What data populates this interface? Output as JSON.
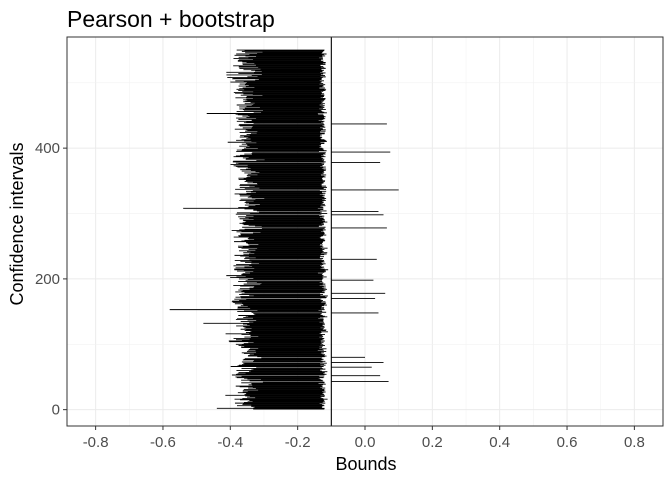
{
  "chart_data": {
    "type": "interval",
    "title": "Pearson + bootstrap",
    "xlabel": "Bounds",
    "ylabel": "Confidence intervals",
    "xlim": [
      -0.885,
      0.885
    ],
    "ylim": [
      -25,
      570
    ],
    "x_ticks": [
      -0.8,
      -0.6,
      -0.4,
      -0.2,
      0.0,
      0.2,
      0.4,
      0.6,
      0.8
    ],
    "x_tick_labels": [
      "-0.8",
      "-0.6",
      "-0.4",
      "-0.2",
      "0.0",
      "0.2",
      "0.4",
      "0.6",
      "0.8"
    ],
    "y_ticks": [
      0,
      200,
      400
    ],
    "y_tick_labels": [
      "0",
      "200",
      "400"
    ],
    "n_intervals": 550,
    "reference_line_x": -0.1,
    "interval_center_mean": -0.2,
    "lower_bound_typical_range": [
      -0.44,
      -0.28
    ],
    "upper_bound_typical_range": [
      -0.14,
      -0.1
    ],
    "highlighted_intervals": [
      {
        "y": 43,
        "lower": -0.1,
        "upper": 0.07
      },
      {
        "y": 52,
        "lower": -0.1,
        "upper": 0.045
      },
      {
        "y": 65,
        "lower": -0.1,
        "upper": 0.02
      },
      {
        "y": 72,
        "lower": -0.1,
        "upper": 0.055
      },
      {
        "y": 80,
        "lower": -0.1,
        "upper": 0.0
      },
      {
        "y": 148,
        "lower": -0.1,
        "upper": 0.04
      },
      {
        "y": 170,
        "lower": -0.1,
        "upper": 0.03
      },
      {
        "y": 178,
        "lower": -0.1,
        "upper": 0.06
      },
      {
        "y": 198,
        "lower": -0.1,
        "upper": 0.025
      },
      {
        "y": 230,
        "lower": -0.1,
        "upper": 0.035
      },
      {
        "y": 278,
        "lower": -0.1,
        "upper": 0.065
      },
      {
        "y": 298,
        "lower": -0.1,
        "upper": 0.055
      },
      {
        "y": 303,
        "lower": -0.1,
        "upper": 0.04
      },
      {
        "y": 336,
        "lower": -0.1,
        "upper": 0.1
      },
      {
        "y": 378,
        "lower": -0.1,
        "upper": 0.045
      },
      {
        "y": 394,
        "lower": -0.1,
        "upper": 0.075
      },
      {
        "y": 437,
        "lower": -0.1,
        "upper": 0.065
      }
    ],
    "wide_intervals": [
      {
        "y": 153,
        "lower": -0.58,
        "upper": -0.12
      },
      {
        "y": 132,
        "lower": -0.48,
        "upper": -0.12
      },
      {
        "y": 308,
        "lower": -0.54,
        "upper": -0.14
      },
      {
        "y": 453,
        "lower": -0.47,
        "upper": -0.14
      },
      {
        "y": 2,
        "lower": -0.44,
        "upper": -0.12
      }
    ],
    "grid": true
  }
}
